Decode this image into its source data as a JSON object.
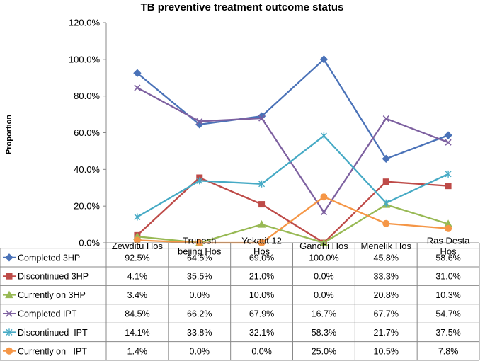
{
  "chart_data": {
    "type": "line",
    "title": "TB preventive treatment outcome status",
    "xlabel": "",
    "ylabel": "Proportion",
    "ylim": [
      0,
      120
    ],
    "yticks": [
      "0.0%",
      "20.0%",
      "40.0%",
      "60.0%",
      "80.0%",
      "100.0%",
      "120.0%"
    ],
    "categories": [
      [
        "Zewditu Hos"
      ],
      [
        "Trunesh",
        "bejing Hos"
      ],
      [
        "Yekatit 12",
        "Hos"
      ],
      [
        "Gandhi Hos"
      ],
      [
        "Menelik Hos"
      ],
      [
        "Ras Desta",
        "Hos"
      ]
    ],
    "series": [
      {
        "name": "Completed 3HP",
        "color": "#4a72b8",
        "marker": "diamond",
        "values": [
          92.5,
          64.5,
          69.0,
          100.0,
          45.8,
          58.6
        ],
        "labels": [
          "92.5%",
          "64.5%",
          "69.0%",
          "100.0%",
          "45.8%",
          "58.6%"
        ]
      },
      {
        "name": "Discontinued 3HP",
        "color": "#be4b48",
        "marker": "square",
        "values": [
          4.1,
          35.5,
          21.0,
          0.0,
          33.3,
          31.0
        ],
        "labels": [
          "4.1%",
          "35.5%",
          "21.0%",
          "0.0%",
          "33.3%",
          "31.0%"
        ]
      },
      {
        "name": "Currently on 3HP",
        "color": "#98b954",
        "marker": "triangle",
        "values": [
          3.4,
          0.0,
          10.0,
          0.0,
          20.8,
          10.3
        ],
        "labels": [
          "3.4%",
          "0.0%",
          "10.0%",
          "0.0%",
          "20.8%",
          "10.3%"
        ]
      },
      {
        "name": "Completed IPT",
        "color": "#7d60a0",
        "marker": "x",
        "values": [
          84.5,
          66.2,
          67.9,
          16.7,
          67.7,
          54.7
        ],
        "labels": [
          "84.5%",
          "66.2%",
          "67.9%",
          "16.7%",
          "67.7%",
          "54.7%"
        ]
      },
      {
        "name": "Discontinued  IPT",
        "color": "#46aac5",
        "marker": "star",
        "values": [
          14.1,
          33.8,
          32.1,
          58.3,
          21.7,
          37.5
        ],
        "labels": [
          "14.1%",
          "33.8%",
          "32.1%",
          "58.3%",
          "21.7%",
          "37.5%"
        ]
      },
      {
        "name": "Currently on   IPT",
        "color": "#f59646",
        "marker": "circle",
        "values": [
          1.4,
          0.0,
          0.0,
          25.0,
          10.5,
          7.8
        ],
        "labels": [
          "1.4%",
          "0.0%",
          "0.0%",
          "25.0%",
          "10.5%",
          "7.8%"
        ]
      }
    ]
  }
}
